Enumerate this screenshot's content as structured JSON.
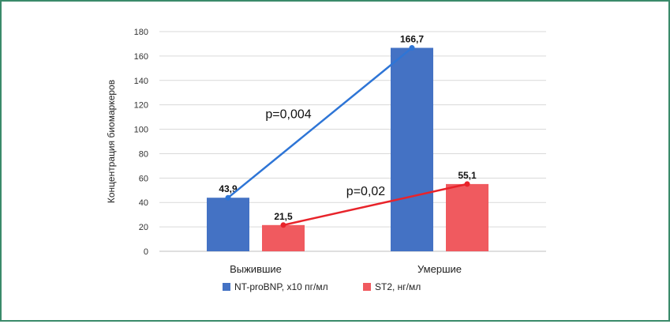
{
  "chart_data": {
    "type": "bar",
    "categories": [
      "Выжившие",
      "Умершие"
    ],
    "ylabel": "Концентрация биомаркеров",
    "ylim": [
      0,
      180
    ],
    "yticks": [
      0,
      20,
      40,
      60,
      80,
      100,
      120,
      140,
      160,
      180
    ],
    "grid": true,
    "legend_position": "bottom",
    "series": [
      {
        "name": "NT-proBNP,  х10 пг/мл",
        "values": [
          43.9,
          166.7
        ],
        "labels": [
          "43,9",
          "166,7"
        ],
        "color": "#4472c4",
        "line_color": "#2e75d6"
      },
      {
        "name": "ST2, нг/мл",
        "values": [
          21.5,
          55.1
        ],
        "labels": [
          "21,5",
          "55,1"
        ],
        "color": "#f05a5f",
        "line_color": "#e8232a"
      }
    ],
    "annotations": [
      {
        "series": 0,
        "text": "p=0,004"
      },
      {
        "series": 1,
        "text": "p=0,02"
      }
    ]
  }
}
